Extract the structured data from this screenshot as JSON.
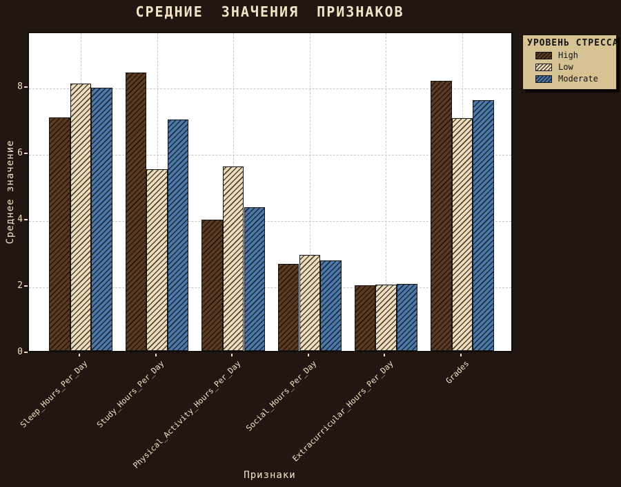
{
  "chart_data": {
    "type": "bar",
    "title": "СРЕДНИЕ ЗНАЧЕНИЯ ПРИЗНАКОВ",
    "xlabel": "Признаки",
    "ylabel": "Среднее значение",
    "legend_title": "УРОВЕНЬ СТРЕССА",
    "legend_position": "upper right, outside plot",
    "grid": true,
    "hatch": "///",
    "categories": [
      "Sleep_Hours_Per_Day",
      "Study_Hours_Per_Day",
      "Physical_Activity_Hours_Per_Day",
      "Social_Hours_Per_Day",
      "Extracurricular_Hours_Per_Day",
      "Grades"
    ],
    "series": [
      {
        "name": "High",
        "color": "#5C3A22",
        "values": [
          7.05,
          8.4,
          3.97,
          2.63,
          1.98,
          8.15
        ]
      },
      {
        "name": "Low",
        "color": "#EFDCBB",
        "values": [
          8.07,
          5.49,
          5.57,
          2.9,
          2.0,
          7.03
        ]
      },
      {
        "name": "Moderate",
        "color": "#4C78AC",
        "values": [
          7.94,
          6.99,
          4.34,
          2.74,
          2.02,
          7.57
        ]
      }
    ],
    "yticks": [
      0,
      2,
      4,
      6,
      8
    ],
    "ylim": [
      0,
      9.67
    ],
    "colors": {
      "figure_background": "#211612",
      "plot_background": "#FFFFFF",
      "text": "#F3E5C6",
      "tick_text": "#EFE2C0",
      "grid": "#C6C6C6",
      "bar_edge": "#141414",
      "legend_background": "#D7C293"
    }
  }
}
